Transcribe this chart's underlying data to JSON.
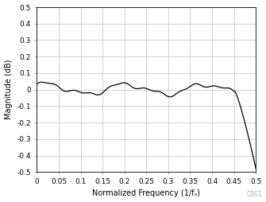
{
  "title": "",
  "xlabel": "Normalized Frequency (1/fₛ)",
  "ylabel": "Magnitude (dB)",
  "xlim": [
    0,
    0.5
  ],
  "ylim": [
    -0.5,
    0.5
  ],
  "xticks": [
    0,
    0.05,
    0.1,
    0.15,
    0.2,
    0.25,
    0.3,
    0.35,
    0.4,
    0.45,
    0.5
  ],
  "yticks": [
    -0.5,
    -0.4,
    -0.3,
    -0.2,
    -0.1,
    0.0,
    0.1,
    0.2,
    0.3,
    0.4,
    0.5
  ],
  "line_color": "#000000",
  "grid_color": "#c0c0c0",
  "background_color": "#ffffff",
  "label_color": "#000000",
  "watermark": "C001",
  "watermark_color": "#b0b0b0",
  "xlabel_fontsize": 7,
  "ylabel_fontsize": 7,
  "tick_fontsize": 6.5
}
